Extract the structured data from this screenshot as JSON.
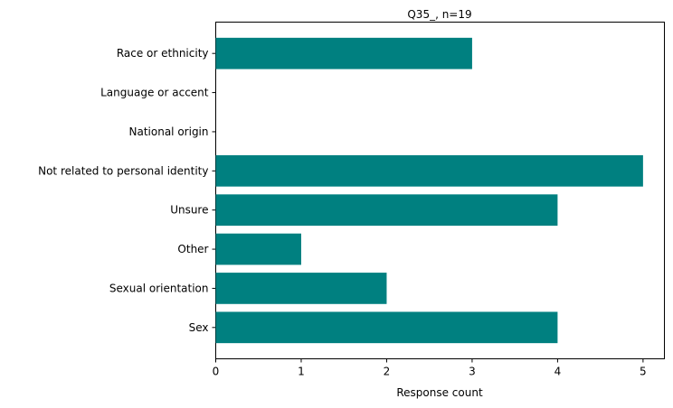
{
  "chart_data": {
    "type": "bar",
    "orientation": "horizontal",
    "title": "Q35_, n=19",
    "xlabel": "Response count",
    "ylabel": "",
    "categories": [
      "Race or ethnicity",
      "Language or accent",
      "National origin",
      "Not related to personal identity",
      "Unsure",
      "Other",
      "Sexual orientation",
      "Sex"
    ],
    "values": [
      3,
      0,
      0,
      5,
      4,
      1,
      2,
      4
    ],
    "xlim": [
      0,
      5.25
    ],
    "xticks": [
      "0",
      "1",
      "2",
      "3",
      "4",
      "5"
    ],
    "grid": false,
    "legend": "none",
    "bar_color": "#008080"
  }
}
